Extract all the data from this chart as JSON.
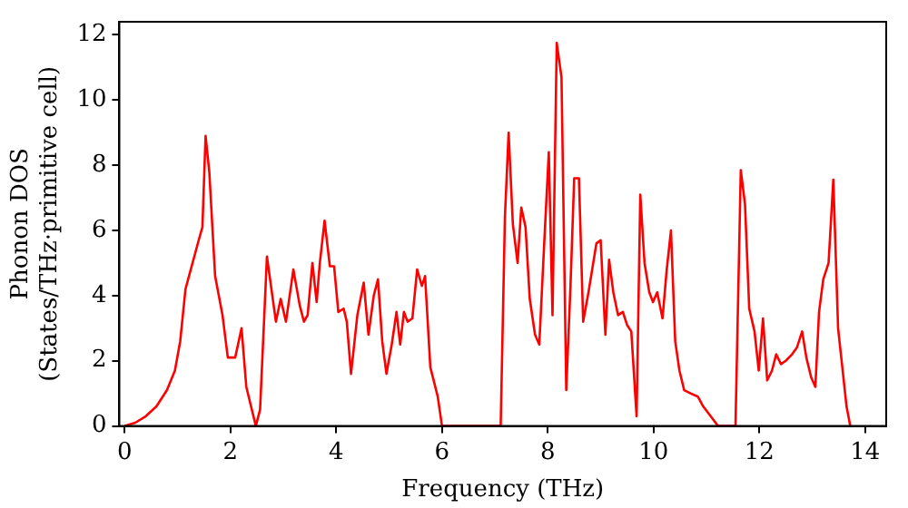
{
  "chart_data": {
    "type": "line",
    "xlabel": "Frequency (THz)",
    "ylabel": "Phonon DOS\n(States/THz·primitive cell)",
    "xlim": [
      -0.1,
      14.4
    ],
    "xticks": [
      0,
      2,
      4,
      6,
      8,
      10,
      12,
      14
    ],
    "ylim": [
      0,
      12.4
    ],
    "yticks": [
      0,
      2,
      4,
      6,
      8,
      10,
      12
    ],
    "grid": false,
    "legend": false,
    "marker": "none",
    "line_style": "solid",
    "series": [
      {
        "color": "#ff0000",
        "x": [
          0,
          0.2,
          0.4,
          0.6,
          0.8,
          0.95,
          1.05,
          1.15,
          1.25,
          1.4,
          1.47,
          1.53,
          1.6,
          1.71,
          1.85,
          1.95,
          2.09,
          2.21,
          2.3,
          2.48,
          2.56,
          2.69,
          2.86,
          2.95,
          3.05,
          3.19,
          3.31,
          3.39,
          3.46,
          3.55,
          3.63,
          3.69,
          3.78,
          3.88,
          3.96,
          4.04,
          4.14,
          4.2,
          4.28,
          4.4,
          4.52,
          4.61,
          4.71,
          4.79,
          4.87,
          4.95,
          5.05,
          5.14,
          5.21,
          5.28,
          5.35,
          5.44,
          5.53,
          5.62,
          5.68,
          5.78,
          5.92,
          6.0,
          7.11,
          7.19,
          7.26,
          7.34,
          7.43,
          7.5,
          7.58,
          7.66,
          7.76,
          7.84,
          7.93,
          8.02,
          8.09,
          8.17,
          8.26,
          8.35,
          8.43,
          8.5,
          8.59,
          8.67,
          8.77,
          8.85,
          8.92,
          9.0,
          9.09,
          9.16,
          9.24,
          9.33,
          9.42,
          9.5,
          9.58,
          9.68,
          9.75,
          9.83,
          9.92,
          9.99,
          10.07,
          10.17,
          10.25,
          10.33,
          10.41,
          10.49,
          10.58,
          10.7,
          10.84,
          10.94,
          11.08,
          11.22,
          11.55,
          11.65,
          11.73,
          11.81,
          11.91,
          11.99,
          12.07,
          12.15,
          12.24,
          12.32,
          12.41,
          12.5,
          12.62,
          12.71,
          12.81,
          12.89,
          12.98,
          13.06,
          13.13,
          13.21,
          13.31,
          13.4,
          13.49,
          13.57,
          13.65,
          13.72
        ],
        "values": [
          0,
          0.1,
          0.3,
          0.6,
          1.1,
          1.7,
          2.6,
          4.2,
          4.8,
          5.7,
          6.1,
          8.9,
          7.8,
          4.6,
          3.4,
          2.1,
          2.1,
          3.0,
          1.2,
          0,
          0.5,
          5.2,
          3.2,
          3.9,
          3.2,
          4.8,
          3.7,
          3.2,
          3.4,
          5.0,
          3.8,
          5.0,
          6.3,
          4.9,
          4.9,
          3.5,
          3.6,
          3.2,
          1.6,
          3.4,
          4.4,
          2.8,
          4.0,
          4.5,
          2.6,
          1.6,
          2.5,
          3.5,
          2.5,
          3.5,
          3.2,
          3.3,
          4.8,
          4.3,
          4.6,
          1.8,
          0.9,
          0,
          0,
          6.4,
          9.0,
          6.2,
          5.0,
          6.7,
          6.1,
          3.9,
          2.8,
          2.5,
          5.5,
          8.4,
          3.4,
          11.75,
          10.7,
          1.1,
          4.3,
          7.6,
          7.6,
          3.2,
          4.1,
          4.9,
          5.6,
          5.7,
          2.8,
          5.1,
          4.1,
          3.4,
          3.5,
          3.1,
          2.9,
          0.3,
          7.1,
          5.0,
          4.1,
          3.8,
          4.1,
          3.3,
          4.8,
          6.0,
          2.6,
          1.7,
          1.1,
          1.0,
          0.9,
          0.6,
          0.3,
          0,
          0,
          7.85,
          6.8,
          3.6,
          2.9,
          1.7,
          3.3,
          1.4,
          1.7,
          2.2,
          1.9,
          2.0,
          2.2,
          2.4,
          2.9,
          2.1,
          1.5,
          1.2,
          3.5,
          4.5,
          5.0,
          7.56,
          3.0,
          1.8,
          0.6,
          0
        ]
      }
    ]
  }
}
